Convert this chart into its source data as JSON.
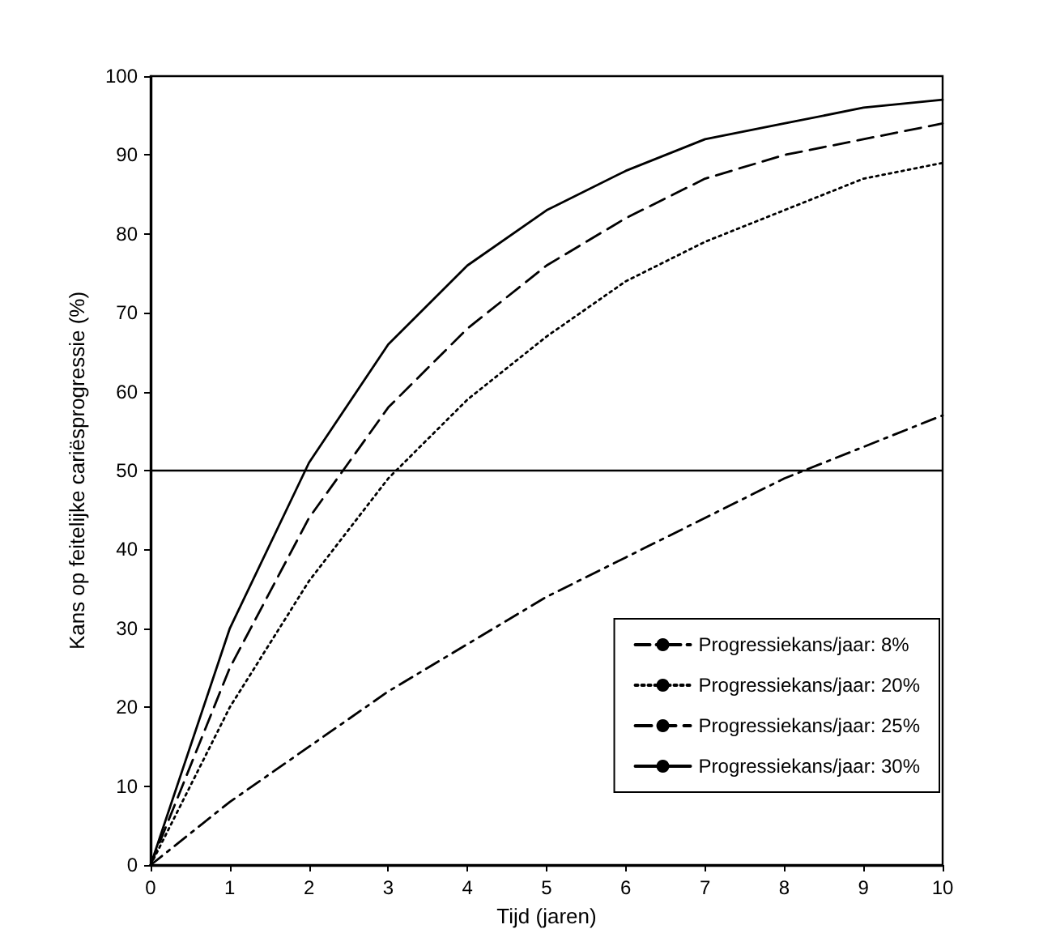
{
  "chart_data": {
    "type": "line",
    "xlabel": "Tijd (jaren)",
    "ylabel": "Kans op feitelijke cariësprogressie (%)",
    "x": [
      0,
      1,
      2,
      3,
      4,
      5,
      6,
      7,
      8,
      9,
      10
    ],
    "series": [
      {
        "name": "Progressiekans/jaar: 8%",
        "color": "#000000",
        "line_style": "dashdot",
        "values": [
          0,
          8,
          15,
          22,
          28,
          34,
          39,
          44,
          49,
          53,
          57
        ]
      },
      {
        "name": "Progressiekans/jaar: 20%",
        "color": "#000000",
        "line_style": "dotted",
        "values": [
          0,
          20,
          36,
          49,
          59,
          67,
          74,
          79,
          83,
          87,
          89
        ]
      },
      {
        "name": "Progressiekans/jaar: 25%",
        "color": "#000000",
        "line_style": "dashed",
        "values": [
          0,
          25,
          44,
          58,
          68,
          76,
          82,
          87,
          90,
          92,
          94
        ]
      },
      {
        "name": "Progressiekans/jaar: 30%",
        "color": "#000000",
        "line_style": "solid",
        "values": [
          0,
          30,
          51,
          66,
          76,
          83,
          88,
          92,
          94,
          96,
          97
        ]
      }
    ],
    "xlim": [
      0,
      10
    ],
    "xticks": [
      0,
      1,
      2,
      3,
      4,
      5,
      6,
      7,
      8,
      9,
      10
    ],
    "ylim": [
      0,
      100
    ],
    "yticks": [
      0,
      10,
      20,
      30,
      40,
      50,
      60,
      70,
      80,
      90,
      100
    ],
    "ref_lines": [
      {
        "axis": "y",
        "value": 50,
        "color": "#000000"
      }
    ],
    "grid": false,
    "legend": "bottom right",
    "marker": "none"
  }
}
